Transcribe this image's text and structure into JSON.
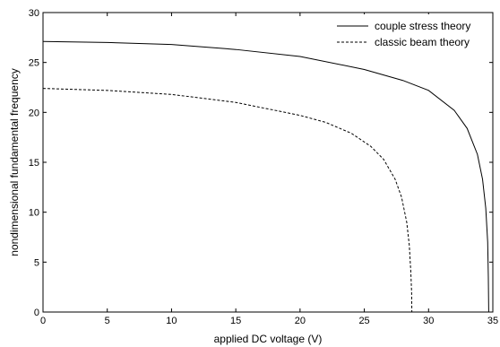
{
  "chart_data": {
    "type": "line",
    "xlabel": "applied DC voltage (V)",
    "ylabel": "nondimensional fundamental frequency",
    "xlim": [
      0,
      35
    ],
    "ylim": [
      0,
      30
    ],
    "xticks": [
      0,
      5,
      10,
      15,
      20,
      25,
      30,
      35
    ],
    "yticks": [
      0,
      5,
      10,
      15,
      20,
      25,
      30
    ],
    "grid": false,
    "legend_position": "top-right",
    "series": [
      {
        "name": "couple stress theory",
        "style": "solid",
        "x": [
          0,
          5,
          10,
          15,
          20,
          25,
          28,
          30,
          32,
          33,
          33.8,
          34.2,
          34.45,
          34.6,
          34.65,
          34.68
        ],
        "y": [
          27.1,
          27.0,
          26.8,
          26.3,
          25.6,
          24.3,
          23.2,
          22.2,
          20.2,
          18.4,
          15.8,
          13.3,
          10.4,
          7.0,
          3.5,
          0
        ]
      },
      {
        "name": "classic beam theory",
        "style": "dashed",
        "x": [
          0,
          5,
          10,
          15,
          20,
          22,
          24,
          25.5,
          26.5,
          27.4,
          27.9,
          28.3,
          28.5,
          28.62,
          28.68,
          28.7
        ],
        "y": [
          22.4,
          22.2,
          21.8,
          21.0,
          19.7,
          19.0,
          17.9,
          16.6,
          15.3,
          13.3,
          11.5,
          9.0,
          6.7,
          4.0,
          2.0,
          0
        ]
      }
    ]
  }
}
